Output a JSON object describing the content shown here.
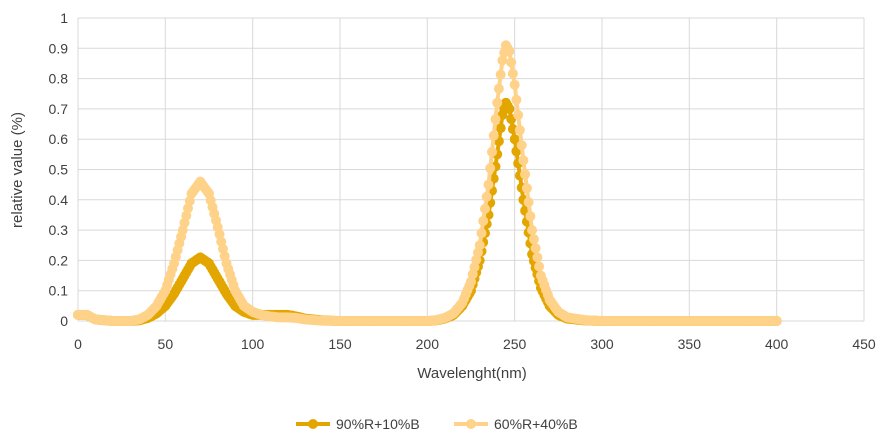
{
  "chart_data": {
    "type": "line",
    "xlabel": "Wavelenght(nm)",
    "ylabel": "relative value (%)",
    "xlim": [
      0,
      450
    ],
    "ylim": [
      0,
      1
    ],
    "x_ticks": [
      0,
      50,
      100,
      150,
      200,
      250,
      300,
      350,
      400,
      450
    ],
    "y_ticks": [
      0,
      0.1,
      0.2,
      0.3,
      0.4,
      0.5,
      0.6,
      0.7,
      0.8,
      0.9,
      1
    ],
    "y_tick_labels": [
      "0",
      "0.1",
      "0.2",
      "0.3",
      "0.4",
      "0.5",
      "0.6",
      "0.7",
      "0.8",
      "0.9",
      "1"
    ],
    "grid": true,
    "legend_position": "bottom",
    "series": [
      {
        "name": "90%R+10%B",
        "color": "#E3A600",
        "points": [
          [
            0,
            0.02
          ],
          [
            5,
            0.02
          ],
          [
            10,
            0.005
          ],
          [
            20,
            0
          ],
          [
            30,
            0
          ],
          [
            35,
            0.002
          ],
          [
            40,
            0.01
          ],
          [
            45,
            0.025
          ],
          [
            50,
            0.05
          ],
          [
            55,
            0.09
          ],
          [
            60,
            0.14
          ],
          [
            65,
            0.19
          ],
          [
            70,
            0.21
          ],
          [
            75,
            0.19
          ],
          [
            80,
            0.14
          ],
          [
            85,
            0.09
          ],
          [
            90,
            0.05
          ],
          [
            95,
            0.03
          ],
          [
            100,
            0.02
          ],
          [
            110,
            0.02
          ],
          [
            115,
            0.02
          ],
          [
            120,
            0.02
          ],
          [
            125,
            0.015
          ],
          [
            130,
            0.008
          ],
          [
            140,
            0.002
          ],
          [
            150,
            0
          ],
          [
            200,
            0
          ],
          [
            205,
            0.002
          ],
          [
            210,
            0.008
          ],
          [
            215,
            0.02
          ],
          [
            220,
            0.05
          ],
          [
            225,
            0.1
          ],
          [
            230,
            0.2
          ],
          [
            235,
            0.35
          ],
          [
            240,
            0.55
          ],
          [
            243,
            0.68
          ],
          [
            245,
            0.72
          ],
          [
            247,
            0.7
          ],
          [
            250,
            0.6
          ],
          [
            255,
            0.4
          ],
          [
            260,
            0.22
          ],
          [
            265,
            0.11
          ],
          [
            270,
            0.05
          ],
          [
            275,
            0.02
          ],
          [
            280,
            0.008
          ],
          [
            290,
            0.002
          ],
          [
            300,
            0
          ],
          [
            400,
            0
          ]
        ]
      },
      {
        "name": "60%R+40%B",
        "color": "#FFD28A",
        "points": [
          [
            0,
            0.02
          ],
          [
            5,
            0.02
          ],
          [
            10,
            0.005
          ],
          [
            20,
            0
          ],
          [
            30,
            0
          ],
          [
            35,
            0.005
          ],
          [
            40,
            0.02
          ],
          [
            45,
            0.05
          ],
          [
            50,
            0.1
          ],
          [
            55,
            0.19
          ],
          [
            60,
            0.3
          ],
          [
            65,
            0.42
          ],
          [
            70,
            0.46
          ],
          [
            75,
            0.42
          ],
          [
            80,
            0.31
          ],
          [
            85,
            0.19
          ],
          [
            90,
            0.1
          ],
          [
            95,
            0.05
          ],
          [
            100,
            0.03
          ],
          [
            105,
            0.02
          ],
          [
            110,
            0.015
          ],
          [
            115,
            0.012
          ],
          [
            120,
            0.012
          ],
          [
            125,
            0.01
          ],
          [
            130,
            0.005
          ],
          [
            140,
            0.001
          ],
          [
            150,
            0
          ],
          [
            200,
            0
          ],
          [
            205,
            0.003
          ],
          [
            210,
            0.01
          ],
          [
            215,
            0.025
          ],
          [
            220,
            0.06
          ],
          [
            225,
            0.13
          ],
          [
            230,
            0.25
          ],
          [
            235,
            0.45
          ],
          [
            240,
            0.72
          ],
          [
            243,
            0.86
          ],
          [
            245,
            0.91
          ],
          [
            247,
            0.89
          ],
          [
            250,
            0.78
          ],
          [
            255,
            0.53
          ],
          [
            260,
            0.3
          ],
          [
            265,
            0.15
          ],
          [
            270,
            0.07
          ],
          [
            275,
            0.03
          ],
          [
            280,
            0.012
          ],
          [
            290,
            0.003
          ],
          [
            300,
            0
          ],
          [
            400,
            0
          ]
        ]
      }
    ]
  }
}
